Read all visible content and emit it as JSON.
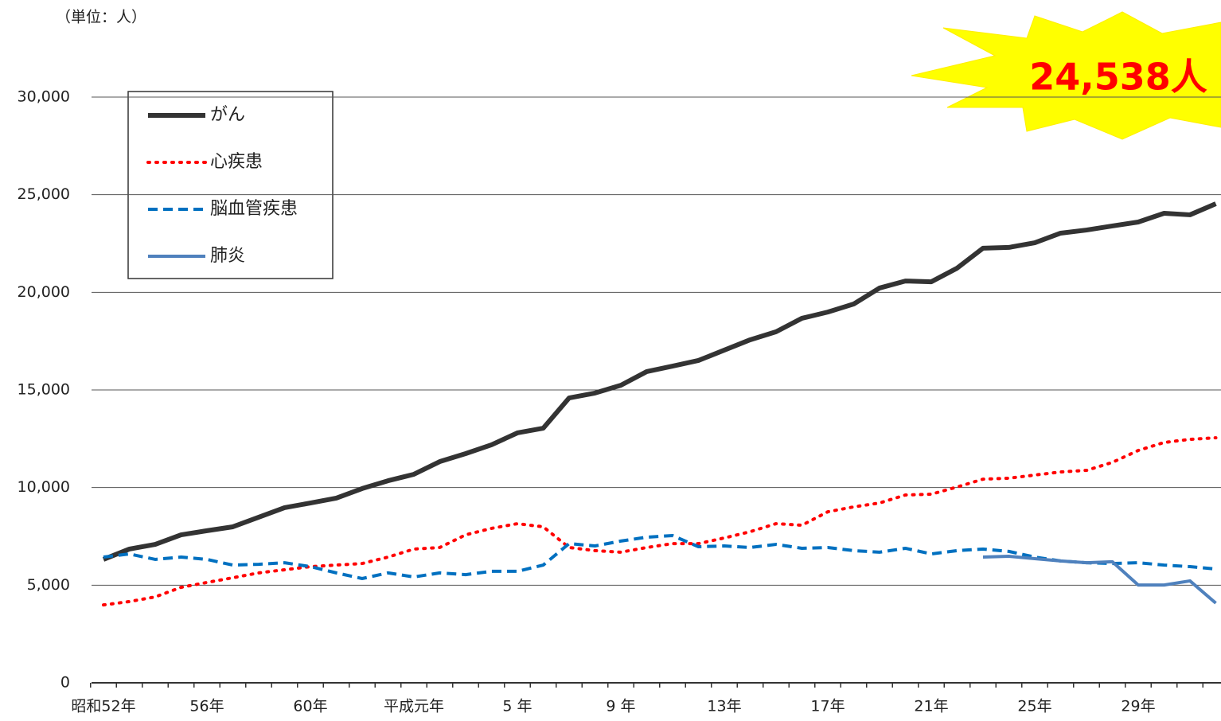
{
  "chart_data": {
    "type": "line",
    "unit_label": "（単位：人）",
    "annotation": "24,538人",
    "categories": [
      "昭和52年",
      null,
      null,
      null,
      "56年",
      null,
      null,
      null,
      "60年",
      null,
      null,
      null,
      "平成元年",
      null,
      null,
      null,
      "5 年",
      null,
      null,
      null,
      "9 年",
      null,
      null,
      null,
      "13年",
      null,
      null,
      null,
      "17年",
      null,
      null,
      null,
      "21年",
      null,
      null,
      null,
      "25年",
      null,
      null,
      null,
      "29年",
      null,
      null,
      null
    ],
    "series": [
      {
        "name": "がん",
        "color": "#333333",
        "dash": "solid",
        "width": 6,
        "values": [
          6320,
          6850,
          7090,
          7580,
          7790,
          7990,
          8480,
          8970,
          9210,
          9460,
          9950,
          10350,
          10680,
          11330,
          11740,
          12190,
          12800,
          13040,
          14590,
          14840,
          15240,
          15940,
          16220,
          16510,
          17040,
          17570,
          17980,
          18670,
          18990,
          19400,
          20220,
          20580,
          20540,
          21240,
          22260,
          22300,
          22540,
          23030,
          23190,
          23400,
          23600,
          24050,
          23970,
          24538
        ]
      },
      {
        "name": "心疾患",
        "color": "#ff0000",
        "dash": "dotted",
        "width": 4,
        "values": [
          3990,
          4160,
          4400,
          4890,
          5140,
          5380,
          5630,
          5790,
          5950,
          6030,
          6110,
          6440,
          6850,
          6930,
          7580,
          7910,
          8150,
          7990,
          6930,
          6770,
          6690,
          6930,
          7130,
          7130,
          7420,
          7740,
          8150,
          8070,
          8760,
          9010,
          9210,
          9620,
          9660,
          10030,
          10430,
          10480,
          10640,
          10800,
          10880,
          11290,
          11900,
          12310,
          12470,
          12550
        ]
      },
      {
        "name": "脳血管疾患",
        "color": "#0070c0",
        "dash": "dashed",
        "width": 4,
        "values": [
          6440,
          6600,
          6320,
          6440,
          6320,
          6030,
          6070,
          6150,
          5950,
          5630,
          5340,
          5630,
          5420,
          5630,
          5540,
          5710,
          5710,
          6030,
          7130,
          7010,
          7260,
          7460,
          7540,
          6970,
          7010,
          6930,
          7090,
          6890,
          6930,
          6770,
          6690,
          6890,
          6600,
          6770,
          6850,
          6730,
          6440,
          6240,
          6150,
          6110,
          6150,
          6030,
          5950,
          5830
        ]
      },
      {
        "name": "肺炎",
        "color": "#4f81bd",
        "dash": "solid",
        "width": 4,
        "values": [
          null,
          null,
          null,
          null,
          null,
          null,
          null,
          null,
          null,
          null,
          null,
          null,
          null,
          null,
          null,
          null,
          null,
          null,
          null,
          null,
          null,
          null,
          null,
          null,
          null,
          null,
          null,
          null,
          null,
          null,
          null,
          null,
          null,
          null,
          6440,
          6480,
          6360,
          6240,
          6150,
          6200,
          5010,
          5010,
          5220,
          4080
        ]
      }
    ],
    "ylim": [
      0,
      30000
    ],
    "yticks": [
      0,
      {
        "value": 5000,
        "label": "5,000"
      },
      {
        "value": 10000,
        "label": "10,000"
      },
      {
        "value": 15000,
        "label": "15,000"
      },
      {
        "value": 20000,
        "label": "20,000"
      },
      {
        "value": 25000,
        "label": "25,000"
      },
      {
        "value": 30000,
        "label": "30,000"
      }
    ],
    "grid": true
  }
}
